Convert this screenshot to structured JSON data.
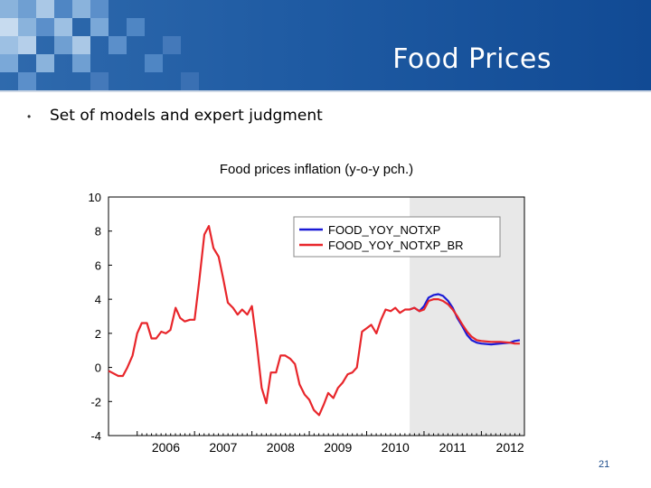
{
  "slide": {
    "title": "Food Prices",
    "bullet_marker": "•",
    "bullet": "Set of models and expert judgment",
    "page_number": "21"
  },
  "colors": {
    "header": "#1f5ba3",
    "series_blue": "#1a1ad6",
    "series_red": "#e8262b",
    "forecast_shade": "#e8e8e8"
  },
  "chart_data": {
    "type": "line",
    "title": "Food prices inflation (y-o-y pch.)",
    "xlabel": "",
    "ylabel": "",
    "ylim": [
      -4,
      10
    ],
    "yticks": [
      10,
      8,
      6,
      4,
      2,
      0,
      -2,
      -4
    ],
    "xlim": [
      2005.5,
      2012.75
    ],
    "xticks": [
      "2006",
      "2007",
      "2008",
      "2009",
      "2010",
      "2011",
      "2012"
    ],
    "forecast_start": 2010.75,
    "legend_position": "top-right",
    "series": [
      {
        "name": "FOOD_YOY_NOTXP",
        "x": [
          2010.75,
          2010.83,
          2010.92,
          2011.0,
          2011.08,
          2011.17,
          2011.25,
          2011.33,
          2011.42,
          2011.5,
          2011.58,
          2011.67,
          2011.75,
          2011.83,
          2011.92,
          2012.0,
          2012.17,
          2012.33,
          2012.5,
          2012.58,
          2012.67
        ],
        "values": [
          3.4,
          3.5,
          3.3,
          3.6,
          4.1,
          4.25,
          4.3,
          4.2,
          3.9,
          3.5,
          2.9,
          2.4,
          1.9,
          1.6,
          1.45,
          1.4,
          1.35,
          1.4,
          1.45,
          1.55,
          1.6
        ]
      },
      {
        "name": "FOOD_YOY_NOTXP_BR",
        "x": [
          2005.5,
          2005.67,
          2005.75,
          2005.83,
          2005.92,
          2006.0,
          2006.08,
          2006.17,
          2006.25,
          2006.33,
          2006.42,
          2006.5,
          2006.58,
          2006.67,
          2006.75,
          2006.83,
          2006.92,
          2007.0,
          2007.08,
          2007.17,
          2007.25,
          2007.33,
          2007.42,
          2007.5,
          2007.58,
          2007.67,
          2007.75,
          2007.83,
          2007.92,
          2008.0,
          2008.08,
          2008.17,
          2008.25,
          2008.33,
          2008.42,
          2008.5,
          2008.58,
          2008.67,
          2008.75,
          2008.83,
          2008.92,
          2009.0,
          2009.08,
          2009.17,
          2009.25,
          2009.33,
          2009.42,
          2009.5,
          2009.58,
          2009.67,
          2009.75,
          2009.83,
          2009.92,
          2010.0,
          2010.08,
          2010.17,
          2010.25,
          2010.33,
          2010.42,
          2010.5,
          2010.58,
          2010.67,
          2010.75,
          2010.83,
          2010.92,
          2011.0,
          2011.08,
          2011.17,
          2011.25,
          2011.33,
          2011.42,
          2011.5,
          2011.58,
          2011.67,
          2011.75,
          2011.83,
          2011.92,
          2012.0,
          2012.17,
          2012.33,
          2012.5,
          2012.58,
          2012.67
        ],
        "values": [
          -0.2,
          -0.5,
          -0.5,
          0.0,
          0.7,
          2.0,
          2.6,
          2.6,
          1.7,
          1.7,
          2.1,
          2.0,
          2.2,
          3.5,
          2.9,
          2.7,
          2.8,
          2.8,
          5.0,
          7.8,
          8.3,
          7.0,
          6.5,
          5.2,
          3.8,
          3.5,
          3.1,
          3.4,
          3.1,
          3.6,
          1.5,
          -1.2,
          -2.1,
          -0.3,
          -0.3,
          0.7,
          0.7,
          0.5,
          0.2,
          -1.0,
          -1.6,
          -1.9,
          -2.5,
          -2.8,
          -2.2,
          -1.5,
          -1.8,
          -1.2,
          -0.9,
          -0.4,
          -0.3,
          0.0,
          2.1,
          2.3,
          2.5,
          2.0,
          2.8,
          3.4,
          3.3,
          3.5,
          3.2,
          3.4,
          3.4,
          3.5,
          3.3,
          3.4,
          3.9,
          4.0,
          4.0,
          3.9,
          3.7,
          3.4,
          3.0,
          2.5,
          2.1,
          1.8,
          1.6,
          1.55,
          1.5,
          1.5,
          1.45,
          1.4,
          1.4
        ]
      }
    ]
  }
}
